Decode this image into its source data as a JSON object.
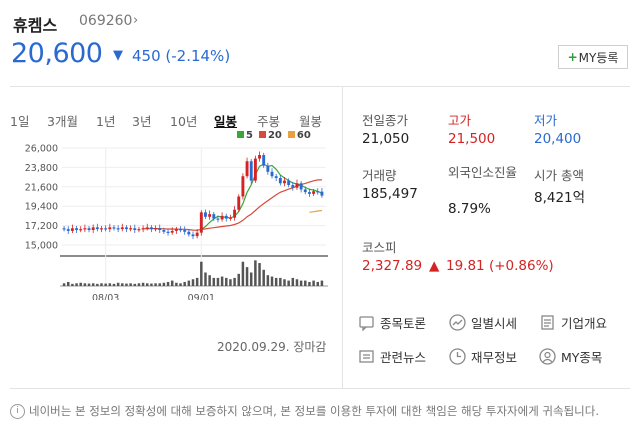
{
  "stock": {
    "name": "휴켐스",
    "code": "069260",
    "price": "20,600",
    "change": "450 (-2.14%)",
    "my_button": "MY등록",
    "down_color": "#2a6ad0",
    "up_color": "#d52323"
  },
  "tabs": [
    "1일",
    "3개월",
    "1년",
    "3년",
    "10년",
    "일봉",
    "주봉",
    "월봉"
  ],
  "active_tab": "일봉",
  "legend": [
    {
      "label": "5",
      "color": "#3aa63a"
    },
    {
      "label": "20",
      "color": "#d84b3a"
    },
    {
      "label": "60",
      "color": "#e8a040"
    }
  ],
  "date_stamp": "2020.09.29. 장마감",
  "chart_data": {
    "type": "candlestick",
    "y_ticks": [
      "26,000",
      "23,800",
      "21,600",
      "19,400",
      "17,200",
      "15,000"
    ],
    "ylim": [
      15000,
      26000
    ],
    "x_ticks": [
      "08/03",
      "09/01"
    ],
    "closes": [
      16800,
      16600,
      16900,
      16700,
      16800,
      16900,
      16700,
      17000,
      16800,
      16900,
      16800,
      17000,
      16900,
      16800,
      17000,
      16800,
      16900,
      16700,
      16800,
      16900,
      17000,
      16800,
      16900,
      16700,
      16500,
      16400,
      16600,
      16800,
      16700,
      16500,
      16200,
      16000,
      16400,
      18700,
      18200,
      18500,
      18000,
      17900,
      18300,
      18000,
      18100,
      19000,
      20500,
      22800,
      24500,
      22300,
      24800,
      25200,
      24000,
      23300,
      22800,
      22600,
      22000,
      22300,
      21800,
      21500,
      22000,
      21300,
      21000,
      20800,
      21100,
      21050,
      20600
    ],
    "ma5_start": 33,
    "volume_peaks": [
      0.1,
      0.15,
      0.08,
      0.1,
      0.12,
      0.1,
      0.09,
      0.1,
      0.08,
      0.1,
      0.09,
      0.1,
      0.08,
      0.12,
      0.1,
      0.09,
      0.1,
      0.08,
      0.1,
      0.12,
      0.1,
      0.09,
      0.1,
      0.1,
      0.12,
      0.15,
      0.2,
      0.12,
      0.1,
      0.15,
      0.2,
      0.25,
      0.3,
      0.9,
      0.5,
      0.4,
      0.3,
      0.3,
      0.35,
      0.3,
      0.25,
      0.3,
      0.45,
      0.9,
      0.7,
      0.5,
      0.95,
      0.85,
      0.6,
      0.4,
      0.35,
      0.3,
      0.3,
      0.25,
      0.2,
      0.3,
      0.25,
      0.2,
      0.2,
      0.15,
      0.2,
      0.15,
      0.2
    ]
  },
  "info": [
    {
      "label": "전일종가",
      "value": "21,050",
      "tone": "normal"
    },
    {
      "label": "고가",
      "value": "21,500",
      "tone": "red"
    },
    {
      "label": "저가",
      "value": "20,400",
      "tone": "blue"
    },
    {
      "label": "거래량",
      "value": "185,497",
      "tone": "normal"
    },
    {
      "label": "외국인소진율",
      "value": "8.79%",
      "tone": "normal"
    },
    {
      "label": "시가 총액",
      "value": "8,421억",
      "tone": "normal"
    }
  ],
  "kospi": {
    "label": "코스피",
    "value": "2,327.89",
    "change": "19.81 (+0.86%)"
  },
  "links": [
    {
      "label": "종목토론",
      "icon": "chat-icon"
    },
    {
      "label": "일별시세",
      "icon": "trend-icon"
    },
    {
      "label": "기업개요",
      "icon": "doc-icon"
    },
    {
      "label": "관련뉴스",
      "icon": "news-icon"
    },
    {
      "label": "재무정보",
      "icon": "clock-icon"
    },
    {
      "label": "MY종목",
      "icon": "user-icon"
    }
  ],
  "footer": "네이버는 본 정보의 정확성에 대해 보증하지 않으며, 본 정보를 이용한 투자에 대한 책임은 해당 투자자에게 귀속됩니다."
}
